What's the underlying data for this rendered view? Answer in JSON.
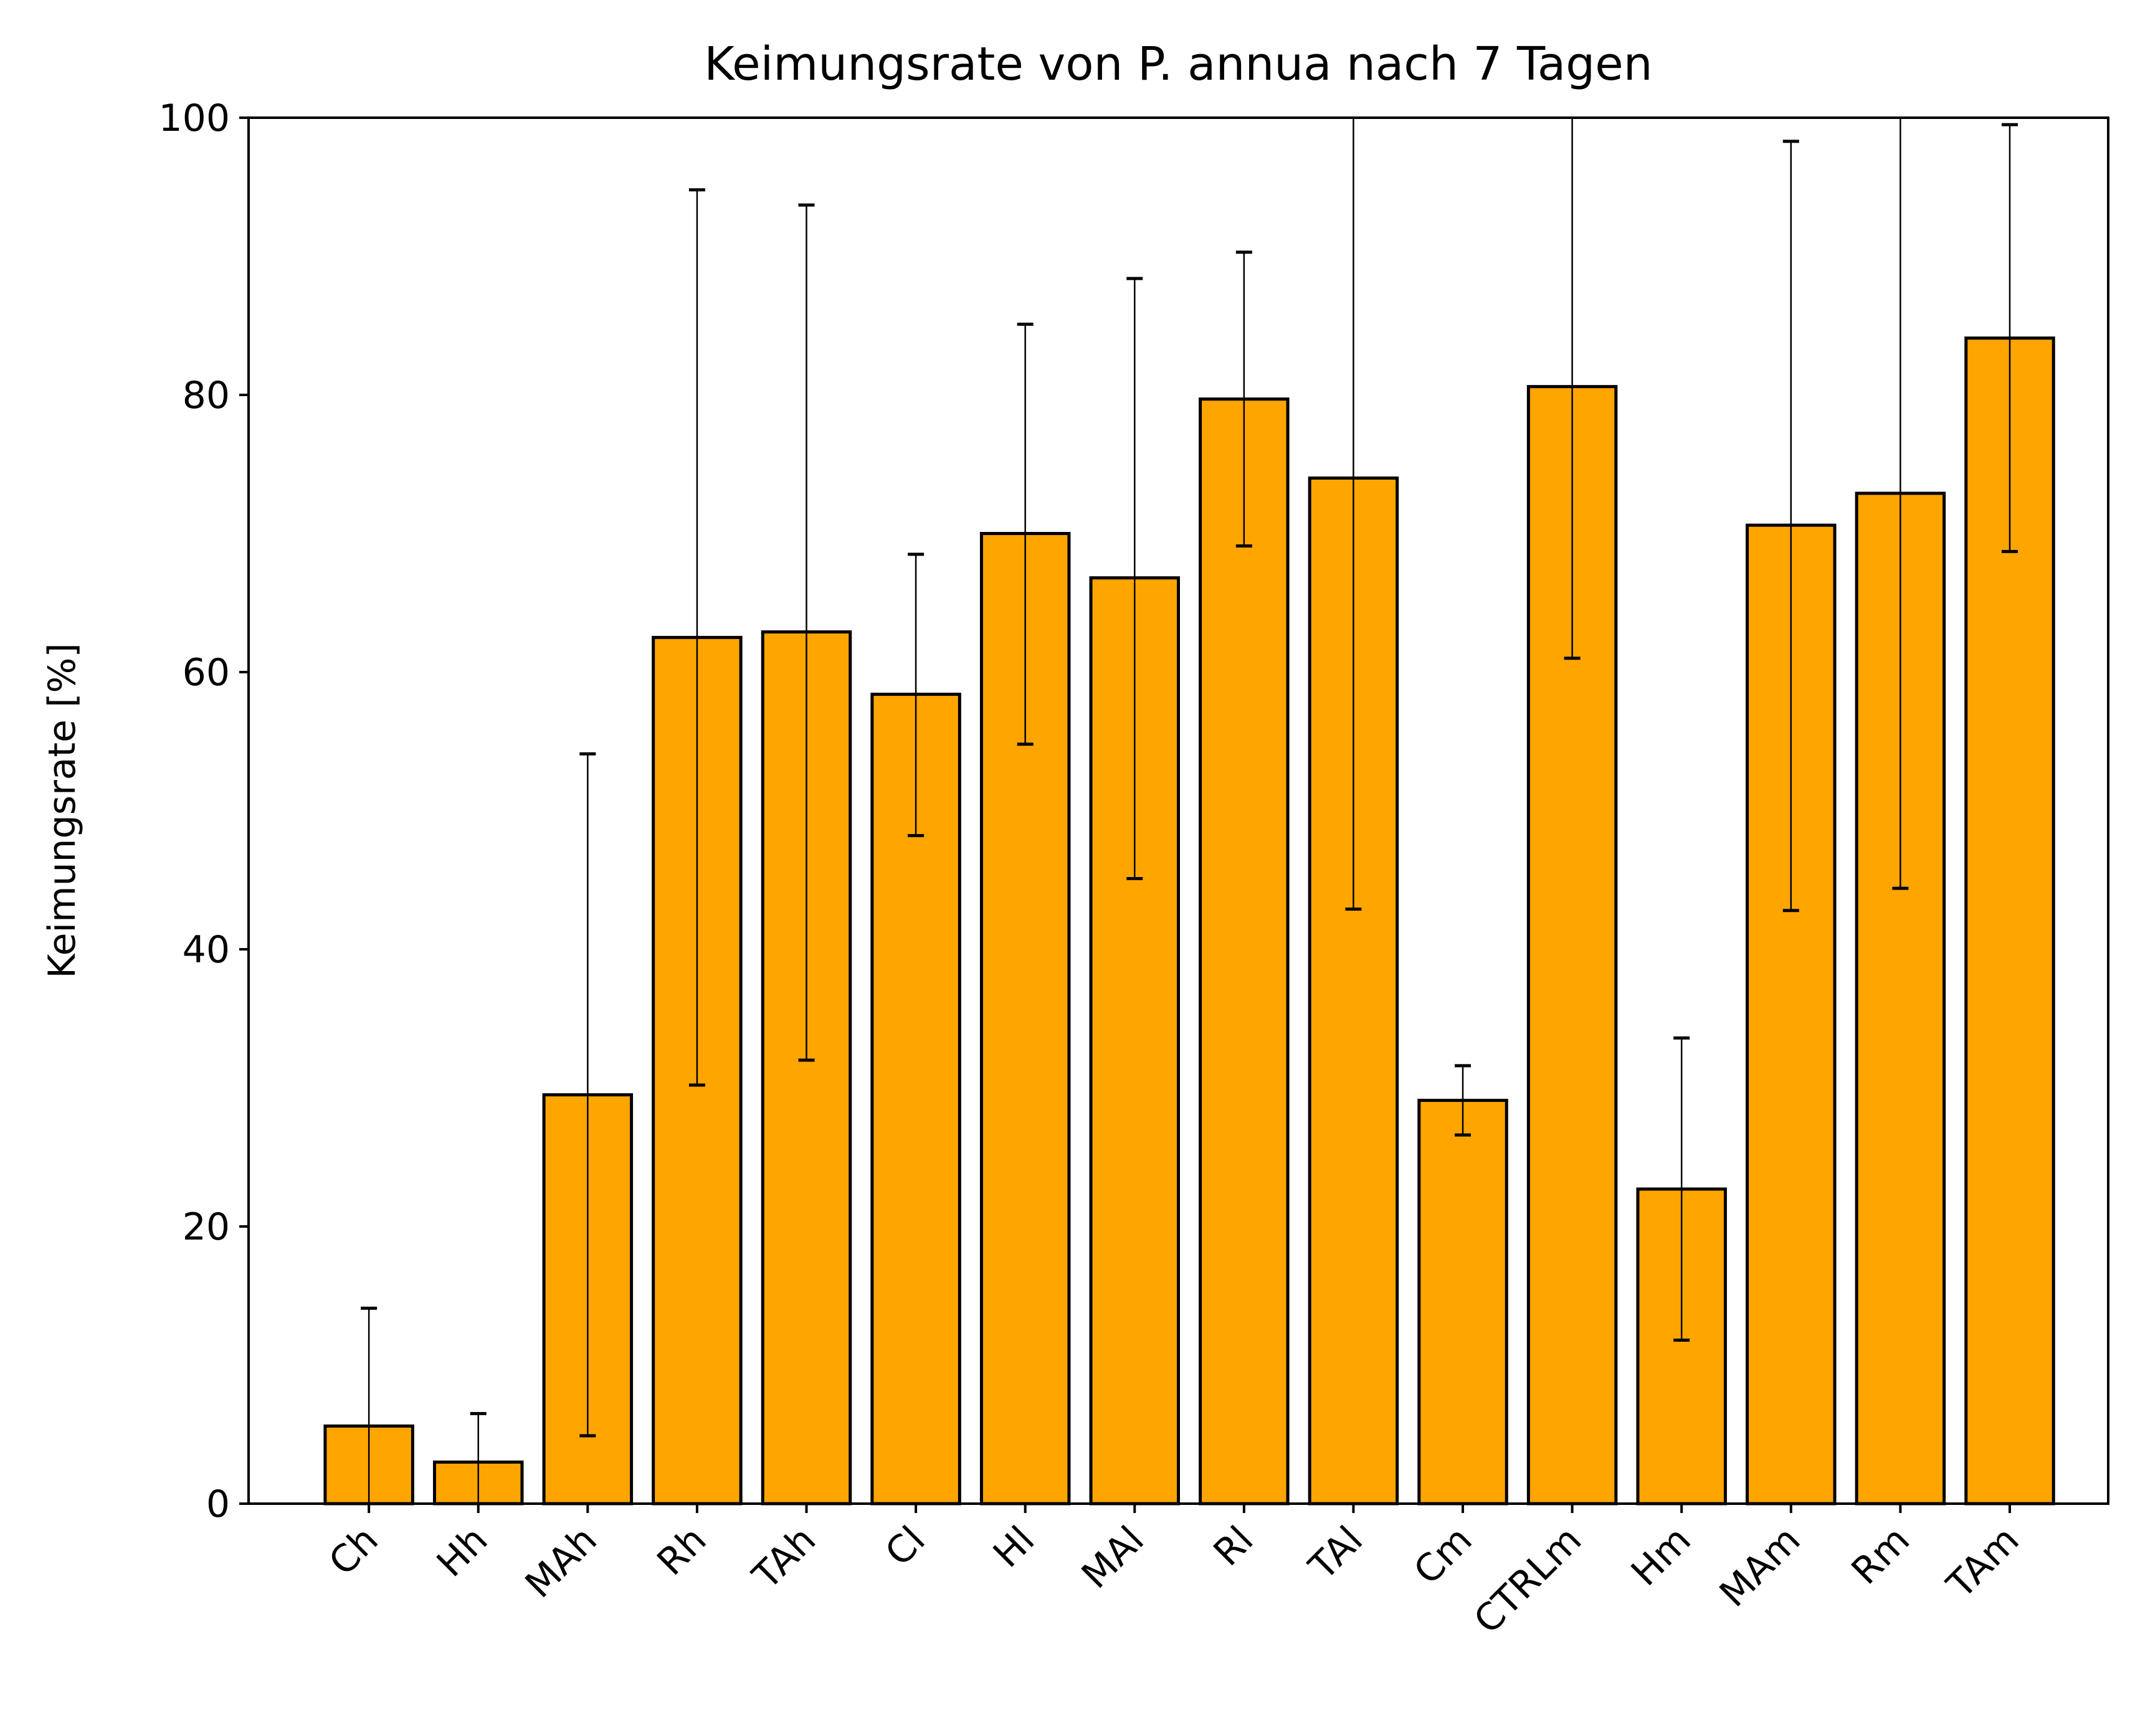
{
  "chart_data": {
    "type": "bar",
    "title": "Keimungsrate von P. annua nach 7 Tagen",
    "xlabel": "",
    "ylabel": "Keimungsrate [%]",
    "ylim": [
      0,
      100
    ],
    "yticks": [
      0,
      20,
      40,
      60,
      80,
      100
    ],
    "categories": [
      "Ch",
      "Hh",
      "MAh",
      "Rh",
      "TAh",
      "Cl",
      "Hl",
      "MAl",
      "Rl",
      "TAl",
      "Cm",
      "CTRLm",
      "Hm",
      "MAm",
      "Rm",
      "TAm"
    ],
    "values": [
      5.6,
      3.0,
      29.5,
      62.5,
      62.9,
      58.4,
      70.0,
      66.8,
      79.7,
      74.0,
      29.1,
      80.6,
      22.7,
      70.6,
      72.9,
      84.1
    ],
    "error_bars": {
      "lower": [
        0.0,
        0.0,
        4.9,
        30.2,
        32.0,
        48.2,
        54.8,
        45.1,
        69.1,
        42.9,
        26.6,
        61.0,
        11.8,
        42.8,
        44.4,
        68.7
      ],
      "upper": [
        14.1,
        6.5,
        54.1,
        94.8,
        93.7,
        68.5,
        85.1,
        88.4,
        90.3,
        105.0,
        31.6,
        100.2,
        33.6,
        98.3,
        101.4,
        99.5
      ]
    },
    "bar_color": "#ffa500",
    "edge_color": "#000000",
    "grid": false,
    "legend": "none"
  }
}
